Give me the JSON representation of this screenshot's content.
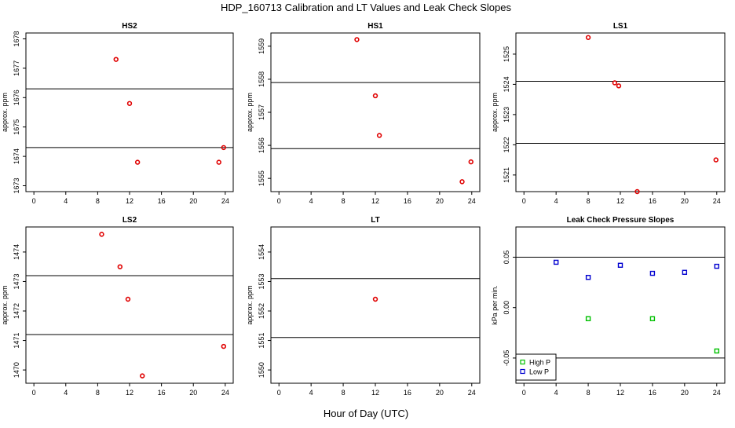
{
  "title": "HDP_160713  Calibration and LT Values and Leak Check Slopes",
  "x_axis_label": "Hour of Day (UTC)",
  "chart_data": [
    {
      "type": "scatter",
      "title": "HS2",
      "ylabel": "approx. ppm",
      "xlim": [
        -1,
        25
      ],
      "ylim": [
        1672.8,
        1678.2
      ],
      "x_ticks": [
        0,
        4,
        8,
        12,
        16,
        20,
        24
      ],
      "y_ticks": [
        1673,
        1674,
        1675,
        1676,
        1677,
        1678
      ],
      "hlines": [
        1676.3,
        1674.3
      ],
      "series": [
        {
          "marker": "circle",
          "color": "#e00000",
          "x": [
            10.3,
            12.0,
            13.0,
            23.2,
            23.8
          ],
          "y": [
            1677.3,
            1675.8,
            1673.8,
            1673.8,
            1674.3
          ]
        }
      ]
    },
    {
      "type": "scatter",
      "title": "HS1",
      "ylabel": "approx. ppm",
      "xlim": [
        -1,
        25
      ],
      "ylim": [
        1554.6,
        1559.4
      ],
      "x_ticks": [
        0,
        4,
        8,
        12,
        16,
        20,
        24
      ],
      "y_ticks": [
        1555,
        1556,
        1557,
        1558,
        1559
      ],
      "hlines": [
        1557.9,
        1555.9
      ],
      "series": [
        {
          "marker": "circle",
          "color": "#e00000",
          "x": [
            9.7,
            12.0,
            12.5,
            22.8,
            23.9
          ],
          "y": [
            1559.2,
            1557.5,
            1556.3,
            1554.9,
            1555.5
          ]
        }
      ]
    },
    {
      "type": "scatter",
      "title": "LS1",
      "ylabel": "approx. ppm",
      "xlim": [
        -1,
        25
      ],
      "ylim": [
        1520.45,
        1525.7
      ],
      "x_ticks": [
        0,
        4,
        8,
        12,
        16,
        20,
        24
      ],
      "y_ticks": [
        1521,
        1522,
        1523,
        1524,
        1525
      ],
      "hlines": [
        1524.1,
        1522.05
      ],
      "series": [
        {
          "marker": "circle",
          "color": "#e00000",
          "x": [
            8.0,
            11.3,
            11.8,
            14.1,
            23.9
          ],
          "y": [
            1525.55,
            1524.05,
            1523.95,
            1520.45,
            1521.5
          ]
        }
      ]
    },
    {
      "type": "scatter",
      "title": "LS2",
      "ylabel": "approx. ppm",
      "xlim": [
        -1,
        25
      ],
      "ylim": [
        1469.55,
        1474.85
      ],
      "x_ticks": [
        0,
        4,
        8,
        12,
        16,
        20,
        24
      ],
      "y_ticks": [
        1470,
        1471,
        1472,
        1473,
        1474
      ],
      "hlines": [
        1473.2,
        1471.2
      ],
      "series": [
        {
          "marker": "circle",
          "color": "#e00000",
          "x": [
            8.5,
            10.8,
            11.8,
            13.6,
            23.8
          ],
          "y": [
            1474.6,
            1473.5,
            1472.4,
            1469.8,
            1470.8
          ]
        }
      ]
    },
    {
      "type": "scatter",
      "title": "LT",
      "ylabel": "approx. ppm",
      "xlim": [
        -1,
        25
      ],
      "ylim": [
        1549.55,
        1554.85
      ],
      "x_ticks": [
        0,
        4,
        8,
        12,
        16,
        20,
        24
      ],
      "y_ticks": [
        1550,
        1551,
        1552,
        1553,
        1554
      ],
      "hlines": [
        1553.1,
        1551.1
      ],
      "series": [
        {
          "marker": "circle",
          "color": "#e00000",
          "x": [
            12.0
          ],
          "y": [
            1552.4
          ]
        }
      ]
    },
    {
      "type": "scatter",
      "title": "Leak Check Pressure Slopes",
      "ylabel": "kPa per min.",
      "xlim": [
        -1,
        25
      ],
      "ylim": [
        -0.075,
        0.08
      ],
      "x_ticks": [
        0,
        4,
        8,
        12,
        16,
        20,
        24
      ],
      "y_ticks": [
        -0.05,
        0.0,
        0.05
      ],
      "y_tick_labels": [
        "-0.05",
        "0.00",
        "0.05"
      ],
      "hlines": [
        0.05,
        -0.05
      ],
      "legend": {
        "position": "bottom-left"
      },
      "series": [
        {
          "name": "High P",
          "marker": "square",
          "color": "#00c000",
          "x": [
            8,
            16,
            24
          ],
          "y": [
            -0.011,
            -0.011,
            -0.043
          ]
        },
        {
          "name": "Low P",
          "marker": "square",
          "color": "#0000d0",
          "x": [
            4,
            8,
            12,
            16,
            20,
            24
          ],
          "y": [
            0.045,
            0.03,
            0.042,
            0.034,
            0.035,
            0.041
          ]
        }
      ]
    }
  ]
}
